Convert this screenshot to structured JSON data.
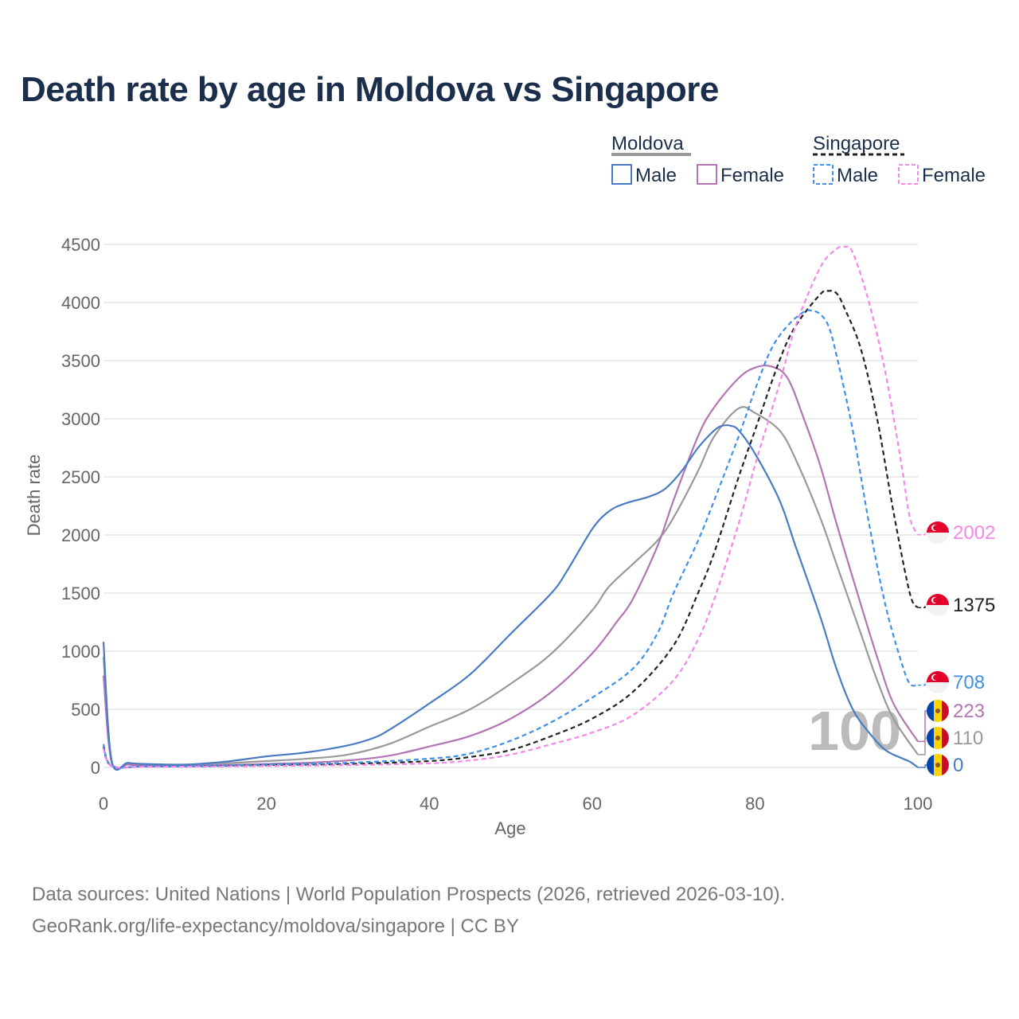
{
  "title": "Death rate by age in Moldova vs Singapore",
  "legend": {
    "groups": [
      {
        "name": "Moldova",
        "entries": [
          "Male",
          "Female"
        ]
      },
      {
        "name": "Singapore",
        "entries": [
          "Male",
          "Female"
        ]
      }
    ]
  },
  "watermark_year": "100",
  "source": {
    "line1": "Data sources: United Nations | World Population Prospects (2026, retrieved 2026-03-10).",
    "line2": "GeoRank.org/life-expectancy/moldova/singapore | CC BY"
  },
  "colors": {
    "moldova_male": "#4a7cc4",
    "moldova_female": "#b374b5",
    "moldova_total": "#999999",
    "singapore_male": "#4090e8",
    "singapore_female": "#f587e8",
    "singapore_total": "#222222",
    "grid": "#e6e6e6"
  },
  "chart_data": {
    "type": "line",
    "title": "Death rate by age in Moldova vs Singapore",
    "xlabel": "Age",
    "ylabel": "Death rate",
    "xlim": [
      0,
      100
    ],
    "ylim": [
      0,
      4500
    ],
    "xticks": [
      0,
      20,
      40,
      60,
      80,
      100
    ],
    "yticks": [
      0,
      500,
      1000,
      1500,
      2000,
      2500,
      3000,
      3500,
      4000,
      4500
    ],
    "grid": true,
    "series": [
      {
        "name": "Moldova Total",
        "country": "Moldova",
        "sex": "Total",
        "style": "solid",
        "color": "#999999",
        "points": [
          [
            0,
            950
          ],
          [
            1,
            55
          ],
          [
            3,
            35
          ],
          [
            5,
            25
          ],
          [
            10,
            20
          ],
          [
            15,
            35
          ],
          [
            20,
            55
          ],
          [
            25,
            75
          ],
          [
            30,
            110
          ],
          [
            35,
            200
          ],
          [
            40,
            350
          ],
          [
            45,
            500
          ],
          [
            50,
            720
          ],
          [
            55,
            980
          ],
          [
            60,
            1350
          ],
          [
            62,
            1550
          ],
          [
            65,
            1750
          ],
          [
            68,
            1950
          ],
          [
            70,
            2150
          ],
          [
            73,
            2550
          ],
          [
            75,
            2850
          ],
          [
            78,
            3090
          ],
          [
            80,
            3050
          ],
          [
            83,
            2900
          ],
          [
            85,
            2650
          ],
          [
            88,
            2150
          ],
          [
            90,
            1750
          ],
          [
            93,
            1150
          ],
          [
            95,
            750
          ],
          [
            97,
            420
          ],
          [
            100,
            110
          ]
        ],
        "end_value": "110",
        "flag": "moldova"
      },
      {
        "name": "Moldova Female",
        "country": "Moldova",
        "sex": "Female",
        "style": "solid",
        "color": "#b374b5",
        "points": [
          [
            0,
            790
          ],
          [
            1,
            45
          ],
          [
            3,
            25
          ],
          [
            5,
            18
          ],
          [
            10,
            15
          ],
          [
            15,
            20
          ],
          [
            20,
            30
          ],
          [
            25,
            40
          ],
          [
            30,
            60
          ],
          [
            35,
            100
          ],
          [
            40,
            180
          ],
          [
            45,
            270
          ],
          [
            50,
            420
          ],
          [
            55,
            650
          ],
          [
            60,
            980
          ],
          [
            63,
            1250
          ],
          [
            65,
            1450
          ],
          [
            68,
            1900
          ],
          [
            70,
            2300
          ],
          [
            73,
            2850
          ],
          [
            75,
            3100
          ],
          [
            78,
            3350
          ],
          [
            80,
            3440
          ],
          [
            82,
            3450
          ],
          [
            84,
            3350
          ],
          [
            86,
            3000
          ],
          [
            88,
            2600
          ],
          [
            90,
            2100
          ],
          [
            93,
            1400
          ],
          [
            95,
            950
          ],
          [
            97,
            550
          ],
          [
            100,
            223
          ]
        ],
        "end_value": "223",
        "flag": "moldova"
      },
      {
        "name": "Moldova Male",
        "country": "Moldova",
        "sex": "Male",
        "style": "solid",
        "color": "#4a7cc4",
        "points": [
          [
            0,
            1080
          ],
          [
            1,
            60
          ],
          [
            3,
            40
          ],
          [
            5,
            30
          ],
          [
            10,
            25
          ],
          [
            15,
            50
          ],
          [
            20,
            95
          ],
          [
            25,
            130
          ],
          [
            30,
            190
          ],
          [
            33,
            250
          ],
          [
            35,
            320
          ],
          [
            40,
            550
          ],
          [
            45,
            800
          ],
          [
            50,
            1150
          ],
          [
            55,
            1500
          ],
          [
            57,
            1700
          ],
          [
            60,
            2050
          ],
          [
            62,
            2200
          ],
          [
            64,
            2270
          ],
          [
            67,
            2330
          ],
          [
            69,
            2400
          ],
          [
            71,
            2550
          ],
          [
            73,
            2750
          ],
          [
            75,
            2900
          ],
          [
            76,
            2940
          ],
          [
            77,
            2940
          ],
          [
            78,
            2900
          ],
          [
            80,
            2700
          ],
          [
            83,
            2300
          ],
          [
            85,
            1900
          ],
          [
            88,
            1300
          ],
          [
            90,
            850
          ],
          [
            92,
            500
          ],
          [
            94,
            300
          ],
          [
            96,
            150
          ],
          [
            98,
            80
          ],
          [
            99,
            50
          ],
          [
            100,
            0
          ]
        ],
        "end_value": "0",
        "flag": "moldova"
      },
      {
        "name": "Singapore Total",
        "country": "Singapore",
        "sex": "Total",
        "style": "dashed",
        "color": "#222222",
        "points": [
          [
            0,
            180
          ],
          [
            1,
            12
          ],
          [
            5,
            8
          ],
          [
            10,
            8
          ],
          [
            20,
            20
          ],
          [
            30,
            30
          ],
          [
            40,
            55
          ],
          [
            45,
            90
          ],
          [
            50,
            150
          ],
          [
            55,
            270
          ],
          [
            60,
            420
          ],
          [
            65,
            650
          ],
          [
            70,
            1050
          ],
          [
            73,
            1500
          ],
          [
            75,
            1850
          ],
          [
            78,
            2500
          ],
          [
            80,
            2900
          ],
          [
            83,
            3500
          ],
          [
            85,
            3800
          ],
          [
            88,
            4070
          ],
          [
            89,
            4100
          ],
          [
            90,
            4080
          ],
          [
            91,
            3950
          ],
          [
            93,
            3600
          ],
          [
            95,
            3000
          ],
          [
            97,
            2200
          ],
          [
            99,
            1500
          ],
          [
            100,
            1375
          ]
        ],
        "end_value": "1375",
        "flag": "singapore"
      },
      {
        "name": "Singapore Male",
        "country": "Singapore",
        "sex": "Male",
        "style": "dashed",
        "color": "#4090e8",
        "points": [
          [
            0,
            200
          ],
          [
            1,
            14
          ],
          [
            5,
            10
          ],
          [
            10,
            10
          ],
          [
            20,
            25
          ],
          [
            30,
            40
          ],
          [
            40,
            75
          ],
          [
            45,
            120
          ],
          [
            50,
            230
          ],
          [
            55,
            390
          ],
          [
            60,
            600
          ],
          [
            65,
            850
          ],
          [
            68,
            1150
          ],
          [
            70,
            1500
          ],
          [
            73,
            1950
          ],
          [
            75,
            2300
          ],
          [
            78,
            2850
          ],
          [
            80,
            3250
          ],
          [
            82,
            3600
          ],
          [
            84,
            3800
          ],
          [
            86,
            3920
          ],
          [
            87,
            3930
          ],
          [
            88,
            3900
          ],
          [
            89,
            3800
          ],
          [
            90,
            3550
          ],
          [
            92,
            2900
          ],
          [
            94,
            2100
          ],
          [
            96,
            1400
          ],
          [
            98,
            900
          ],
          [
            99,
            720
          ],
          [
            100,
            708
          ]
        ],
        "end_value": "708",
        "flag": "singapore"
      },
      {
        "name": "Singapore Female",
        "country": "Singapore",
        "sex": "Female",
        "style": "dashed",
        "color": "#f587e8",
        "points": [
          [
            0,
            160
          ],
          [
            1,
            10
          ],
          [
            5,
            6
          ],
          [
            10,
            6
          ],
          [
            20,
            12
          ],
          [
            30,
            20
          ],
          [
            40,
            35
          ],
          [
            45,
            60
          ],
          [
            50,
            110
          ],
          [
            55,
            200
          ],
          [
            60,
            300
          ],
          [
            65,
            450
          ],
          [
            70,
            750
          ],
          [
            73,
            1100
          ],
          [
            75,
            1450
          ],
          [
            78,
            2100
          ],
          [
            80,
            2600
          ],
          [
            83,
            3300
          ],
          [
            85,
            3800
          ],
          [
            88,
            4300
          ],
          [
            90,
            4460
          ],
          [
            91,
            4480
          ],
          [
            92,
            4430
          ],
          [
            94,
            4000
          ],
          [
            96,
            3400
          ],
          [
            98,
            2600
          ],
          [
            99,
            2150
          ],
          [
            100,
            2002
          ]
        ],
        "end_value": "2002",
        "flag": "singapore"
      }
    ],
    "end_labels": [
      {
        "series": "Singapore Female",
        "text": "2002",
        "value": 2002,
        "flag": "singapore"
      },
      {
        "series": "Singapore Total",
        "text": "1375",
        "value": 1375,
        "flag": "singapore"
      },
      {
        "series": "Singapore Male",
        "text": "708",
        "value": 708,
        "flag": "singapore"
      },
      {
        "series": "Moldova Female",
        "text": "223",
        "value": 223,
        "flag": "moldova"
      },
      {
        "series": "Moldova Total",
        "text": "110",
        "value": 110,
        "flag": "moldova"
      },
      {
        "series": "Moldova Male",
        "text": "0",
        "value": 0,
        "flag": "moldova"
      }
    ]
  }
}
